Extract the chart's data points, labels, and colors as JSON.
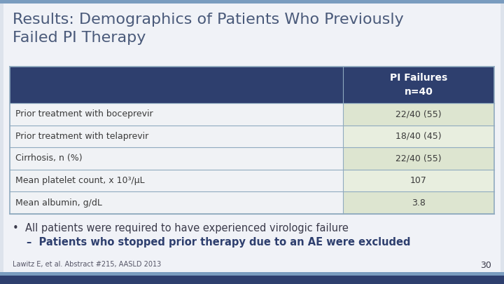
{
  "title": "Results: Demographics of Patients Who Previously\nFailed PI Therapy",
  "title_color": "#4a5a7a",
  "title_fontsize": 16,
  "bg_color": "#dde3ec",
  "white_area_color": "#f0f2f7",
  "header_bg": "#2e3f6e",
  "header_text_color": "#ffffff",
  "header_label": "PI Failures\nn=40",
  "row_labels": [
    "Prior treatment with boceprevir",
    "Prior treatment with telaprevir",
    "Cirrhosis, n (%)",
    "Mean platelet count, x 10³/μL",
    "Mean albumin, g/dL"
  ],
  "row_values": [
    "22/40 (55)",
    "18/40 (45)",
    "22/40 (55)",
    "107",
    "3.8"
  ],
  "left_col_color": "#f0f2f5",
  "right_col_colors": [
    "#dde5d0",
    "#e8eedf",
    "#dde5d0",
    "#e8eedf",
    "#dde5d0"
  ],
  "table_border_color": "#8faabf",
  "text_color": "#3a3a3a",
  "bullet1": "All patients were required to have experienced virologic failure",
  "bullet2": "Patients who stopped prior therapy due to an AE were excluded",
  "bullet1_color": "#3a3a4a",
  "bullet2_color": "#2e3f6e",
  "footnote": "Lawitz E, et al. Abstract #215, AASLD 2013",
  "footnote_color": "#555566",
  "page_number": "30",
  "page_color": "#3a3a4a",
  "bottom_bar_color": "#2e3f6e",
  "bottom_stripe_color": "#7a9cbf",
  "top_stripe_color": "#7a9cbf"
}
